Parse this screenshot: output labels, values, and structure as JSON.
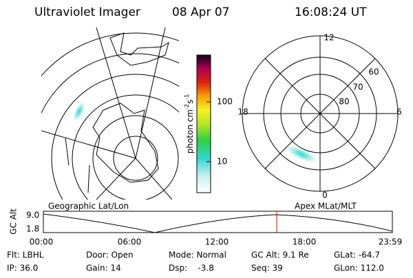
{
  "header": {
    "title": "Ultraviolet Imager",
    "date": "08 Apr 07",
    "time": "16:08:24 UT"
  },
  "colorbar": {
    "label_parts": [
      "photon cm",
      "-2",
      "s",
      "-1"
    ],
    "ticks": [
      "100",
      "10"
    ]
  },
  "polar": {
    "labels": [
      "12",
      "18",
      "6",
      "0",
      "60",
      "70",
      "80"
    ]
  },
  "map_caption": "Geographic Lat/Lon",
  "polar_caption": "Apex MLat/MLT",
  "altitude_plot": {
    "ylabel": "GC Alt",
    "yticks": [
      "9.0",
      "1.8"
    ],
    "xticks": [
      "00:00",
      "06:00",
      "12:00",
      "18:00",
      "23:59"
    ]
  },
  "footer": [
    [
      "Flt: LBHL",
      "Door: Open",
      "Mode: Normal",
      "GC Alt: 9.1 Re",
      "GLat: -64.7"
    ],
    [
      "IP: 36.0",
      "Gain: 14",
      "Dsp:    -3.8",
      "Seq: 39",
      "GLon: 112.0"
    ]
  ]
}
